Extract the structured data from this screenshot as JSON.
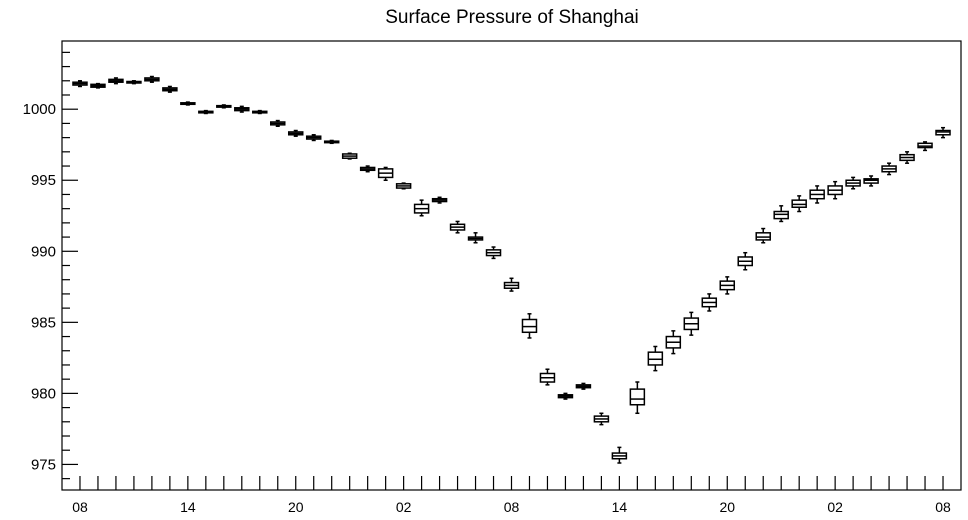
{
  "chart_data": {
    "type": "box",
    "title": "Surface Pressure of Shanghai",
    "xlabel": "",
    "ylabel": "",
    "ylim": [
      973.2,
      1004.8
    ],
    "yticks": [
      975,
      980,
      985,
      990,
      995,
      1000
    ],
    "ytick_labels": [
      "975",
      "980",
      "985",
      "990",
      "995",
      "1000"
    ],
    "xticks_hours": [
      0,
      6,
      12,
      18,
      24,
      30,
      36,
      42,
      48
    ],
    "xtick_labels": [
      "08",
      "14",
      "20",
      "02",
      "08",
      "14",
      "20",
      "02",
      "08"
    ],
    "x_hours_range": [
      -1,
      49
    ],
    "grid": false,
    "series": [
      {
        "boxes": [
          {
            "hour": 0,
            "median": 1001.8,
            "q1": 1001.7,
            "q3": 1001.9,
            "min": 1001.6,
            "max": 1002.0
          },
          {
            "hour": 1,
            "median": 1001.65,
            "q1": 1001.55,
            "q3": 1001.75,
            "min": 1001.5,
            "max": 1001.8
          },
          {
            "hour": 2,
            "median": 1002.0,
            "q1": 1001.9,
            "q3": 1002.1,
            "min": 1001.8,
            "max": 1002.2
          },
          {
            "hour": 3,
            "median": 1001.9,
            "q1": 1001.85,
            "q3": 1001.95,
            "min": 1001.8,
            "max": 1002.0
          },
          {
            "hour": 4,
            "median": 1002.1,
            "q1": 1002.0,
            "q3": 1002.2,
            "min": 1001.9,
            "max": 1002.3
          },
          {
            "hour": 5,
            "median": 1001.4,
            "q1": 1001.3,
            "q3": 1001.5,
            "min": 1001.2,
            "max": 1001.6
          },
          {
            "hour": 6,
            "median": 1000.4,
            "q1": 1000.35,
            "q3": 1000.45,
            "min": 1000.3,
            "max": 1000.5
          },
          {
            "hour": 7,
            "median": 999.8,
            "q1": 999.75,
            "q3": 999.85,
            "min": 999.7,
            "max": 999.9
          },
          {
            "hour": 8,
            "median": 1000.2,
            "q1": 1000.15,
            "q3": 1000.25,
            "min": 1000.1,
            "max": 1000.3
          },
          {
            "hour": 9,
            "median": 1000.0,
            "q1": 999.9,
            "q3": 1000.1,
            "min": 999.8,
            "max": 1000.2
          },
          {
            "hour": 10,
            "median": 999.8,
            "q1": 999.75,
            "q3": 999.85,
            "min": 999.7,
            "max": 999.9
          },
          {
            "hour": 11,
            "median": 999.0,
            "q1": 998.9,
            "q3": 999.1,
            "min": 998.8,
            "max": 999.2
          },
          {
            "hour": 12,
            "median": 998.3,
            "q1": 998.2,
            "q3": 998.4,
            "min": 998.1,
            "max": 998.5
          },
          {
            "hour": 13,
            "median": 998.0,
            "q1": 997.9,
            "q3": 998.1,
            "min": 997.8,
            "max": 998.2
          },
          {
            "hour": 14,
            "median": 997.7,
            "q1": 997.65,
            "q3": 997.75,
            "min": 997.6,
            "max": 997.8
          },
          {
            "hour": 15,
            "median": 996.7,
            "q1": 996.55,
            "q3": 996.85,
            "min": 996.5,
            "max": 996.9
          },
          {
            "hour": 16,
            "median": 995.8,
            "q1": 995.7,
            "q3": 995.9,
            "min": 995.6,
            "max": 996.0
          },
          {
            "hour": 17,
            "median": 995.5,
            "q1": 995.2,
            "q3": 995.8,
            "min": 995.0,
            "max": 995.9
          },
          {
            "hour": 18,
            "median": 994.6,
            "q1": 994.45,
            "q3": 994.75,
            "min": 994.4,
            "max": 994.8
          },
          {
            "hour": 19,
            "median": 993.0,
            "q1": 992.7,
            "q3": 993.3,
            "min": 992.5,
            "max": 993.6
          },
          {
            "hour": 20,
            "median": 993.6,
            "q1": 993.5,
            "q3": 993.7,
            "min": 993.4,
            "max": 993.8
          },
          {
            "hour": 21,
            "median": 991.7,
            "q1": 991.5,
            "q3": 991.9,
            "min": 991.3,
            "max": 992.1
          },
          {
            "hour": 22,
            "median": 990.9,
            "q1": 990.8,
            "q3": 991.0,
            "min": 990.6,
            "max": 991.3
          },
          {
            "hour": 23,
            "median": 989.9,
            "q1": 989.7,
            "q3": 990.1,
            "min": 989.5,
            "max": 990.3
          },
          {
            "hour": 24,
            "median": 987.6,
            "q1": 987.4,
            "q3": 987.8,
            "min": 987.2,
            "max": 988.1
          },
          {
            "hour": 25,
            "median": 984.7,
            "q1": 984.3,
            "q3": 985.2,
            "min": 983.9,
            "max": 985.6
          },
          {
            "hour": 26,
            "median": 981.1,
            "q1": 980.8,
            "q3": 981.4,
            "min": 980.6,
            "max": 981.7
          },
          {
            "hour": 27,
            "median": 979.8,
            "q1": 979.7,
            "q3": 979.9,
            "min": 979.6,
            "max": 980.0
          },
          {
            "hour": 28,
            "median": 980.5,
            "q1": 980.4,
            "q3": 980.6,
            "min": 980.3,
            "max": 980.7
          },
          {
            "hour": 29,
            "median": 978.2,
            "q1": 978.0,
            "q3": 978.4,
            "min": 977.8,
            "max": 978.6
          },
          {
            "hour": 30,
            "median": 975.6,
            "q1": 975.4,
            "q3": 975.8,
            "min": 975.1,
            "max": 976.2
          },
          {
            "hour": 31,
            "median": 979.6,
            "q1": 979.2,
            "q3": 980.3,
            "min": 978.6,
            "max": 980.8
          },
          {
            "hour": 32,
            "median": 982.4,
            "q1": 982.0,
            "q3": 982.9,
            "min": 981.6,
            "max": 983.3
          },
          {
            "hour": 33,
            "median": 983.6,
            "q1": 983.2,
            "q3": 984.0,
            "min": 982.8,
            "max": 984.4
          },
          {
            "hour": 34,
            "median": 984.9,
            "q1": 984.5,
            "q3": 985.3,
            "min": 984.1,
            "max": 985.7
          },
          {
            "hour": 35,
            "median": 986.4,
            "q1": 986.1,
            "q3": 986.7,
            "min": 985.8,
            "max": 987.0
          },
          {
            "hour": 36,
            "median": 987.6,
            "q1": 987.3,
            "q3": 987.9,
            "min": 987.0,
            "max": 988.2
          },
          {
            "hour": 37,
            "median": 989.3,
            "q1": 989.0,
            "q3": 989.6,
            "min": 988.7,
            "max": 989.9
          },
          {
            "hour": 38,
            "median": 991.0,
            "q1": 990.8,
            "q3": 991.3,
            "min": 990.6,
            "max": 991.6
          },
          {
            "hour": 39,
            "median": 992.6,
            "q1": 992.3,
            "q3": 992.8,
            "min": 992.1,
            "max": 993.2
          },
          {
            "hour": 40,
            "median": 993.3,
            "q1": 993.1,
            "q3": 993.6,
            "min": 992.8,
            "max": 993.9
          },
          {
            "hour": 41,
            "median": 994.0,
            "q1": 993.7,
            "q3": 994.3,
            "min": 993.4,
            "max": 994.6
          },
          {
            "hour": 42,
            "median": 994.3,
            "q1": 994.0,
            "q3": 994.6,
            "min": 993.7,
            "max": 994.9
          },
          {
            "hour": 43,
            "median": 994.8,
            "q1": 994.6,
            "q3": 995.0,
            "min": 994.4,
            "max": 995.2
          },
          {
            "hour": 44,
            "median": 995.0,
            "q1": 994.8,
            "q3": 995.1,
            "min": 994.6,
            "max": 995.3
          },
          {
            "hour": 45,
            "median": 995.8,
            "q1": 995.6,
            "q3": 996.0,
            "min": 995.4,
            "max": 996.2
          },
          {
            "hour": 46,
            "median": 996.6,
            "q1": 996.4,
            "q3": 996.8,
            "min": 996.2,
            "max": 997.0
          },
          {
            "hour": 47,
            "median": 997.4,
            "q1": 997.3,
            "q3": 997.6,
            "min": 997.1,
            "max": 997.7
          },
          {
            "hour": 48,
            "median": 998.4,
            "q1": 998.2,
            "q3": 998.5,
            "min": 998.0,
            "max": 998.7
          }
        ]
      }
    ]
  }
}
